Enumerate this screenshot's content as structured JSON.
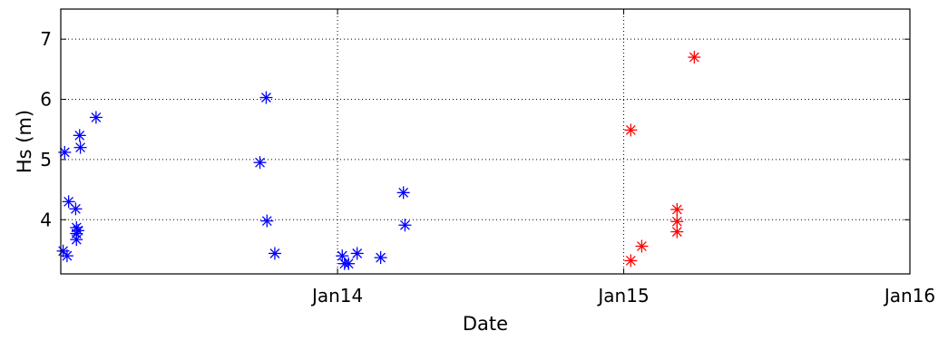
{
  "chart_data": {
    "type": "scatter",
    "title": "",
    "xlabel": "Date",
    "ylabel": "Hs (m)",
    "xlim": [
      "2013-01-13",
      "2016-01-01"
    ],
    "ylim": [
      3.1,
      7.5
    ],
    "grid": true,
    "marker": "asterisk",
    "x_ticks": [
      {
        "value": "2014-01-01",
        "label": "Jan14"
      },
      {
        "value": "2015-01-01",
        "label": "Jan15"
      },
      {
        "value": "2016-01-01",
        "label": "Jan16"
      }
    ],
    "y_ticks": [
      {
        "value": 4,
        "label": "4"
      },
      {
        "value": 5,
        "label": "5"
      },
      {
        "value": 6,
        "label": "6"
      },
      {
        "value": 7,
        "label": "7"
      }
    ],
    "series": [
      {
        "color": "#0000ff",
        "points": [
          {
            "x": "2013-01-16",
            "y": 3.48
          },
          {
            "x": "2013-01-18",
            "y": 5.12
          },
          {
            "x": "2013-01-21",
            "y": 3.4
          },
          {
            "x": "2013-01-23",
            "y": 4.3
          },
          {
            "x": "2013-02-01",
            "y": 4.18
          },
          {
            "x": "2013-02-02",
            "y": 3.67
          },
          {
            "x": "2013-02-02",
            "y": 3.77
          },
          {
            "x": "2013-02-02",
            "y": 3.87
          },
          {
            "x": "2013-02-04",
            "y": 3.82
          },
          {
            "x": "2013-02-06",
            "y": 5.4
          },
          {
            "x": "2013-02-07",
            "y": 5.2
          },
          {
            "x": "2013-02-27",
            "y": 5.7
          },
          {
            "x": "2013-09-24",
            "y": 4.95
          },
          {
            "x": "2013-10-02",
            "y": 6.03
          },
          {
            "x": "2013-10-03",
            "y": 3.98
          },
          {
            "x": "2013-10-13",
            "y": 3.44
          },
          {
            "x": "2014-01-07",
            "y": 3.4
          },
          {
            "x": "2014-01-10",
            "y": 3.27
          },
          {
            "x": "2014-01-15",
            "y": 3.27
          },
          {
            "x": "2014-01-26",
            "y": 3.44
          },
          {
            "x": "2014-02-25",
            "y": 3.37
          },
          {
            "x": "2014-03-26",
            "y": 4.45
          },
          {
            "x": "2014-03-28",
            "y": 3.91
          }
        ]
      },
      {
        "color": "#ff0000",
        "points": [
          {
            "x": "2015-01-10",
            "y": 5.49
          },
          {
            "x": "2015-01-10",
            "y": 3.32
          },
          {
            "x": "2015-01-24",
            "y": 3.56
          },
          {
            "x": "2015-03-10",
            "y": 4.17
          },
          {
            "x": "2015-03-10",
            "y": 3.97
          },
          {
            "x": "2015-03-10",
            "y": 3.8
          },
          {
            "x": "2015-04-01",
            "y": 6.7
          }
        ]
      }
    ]
  }
}
